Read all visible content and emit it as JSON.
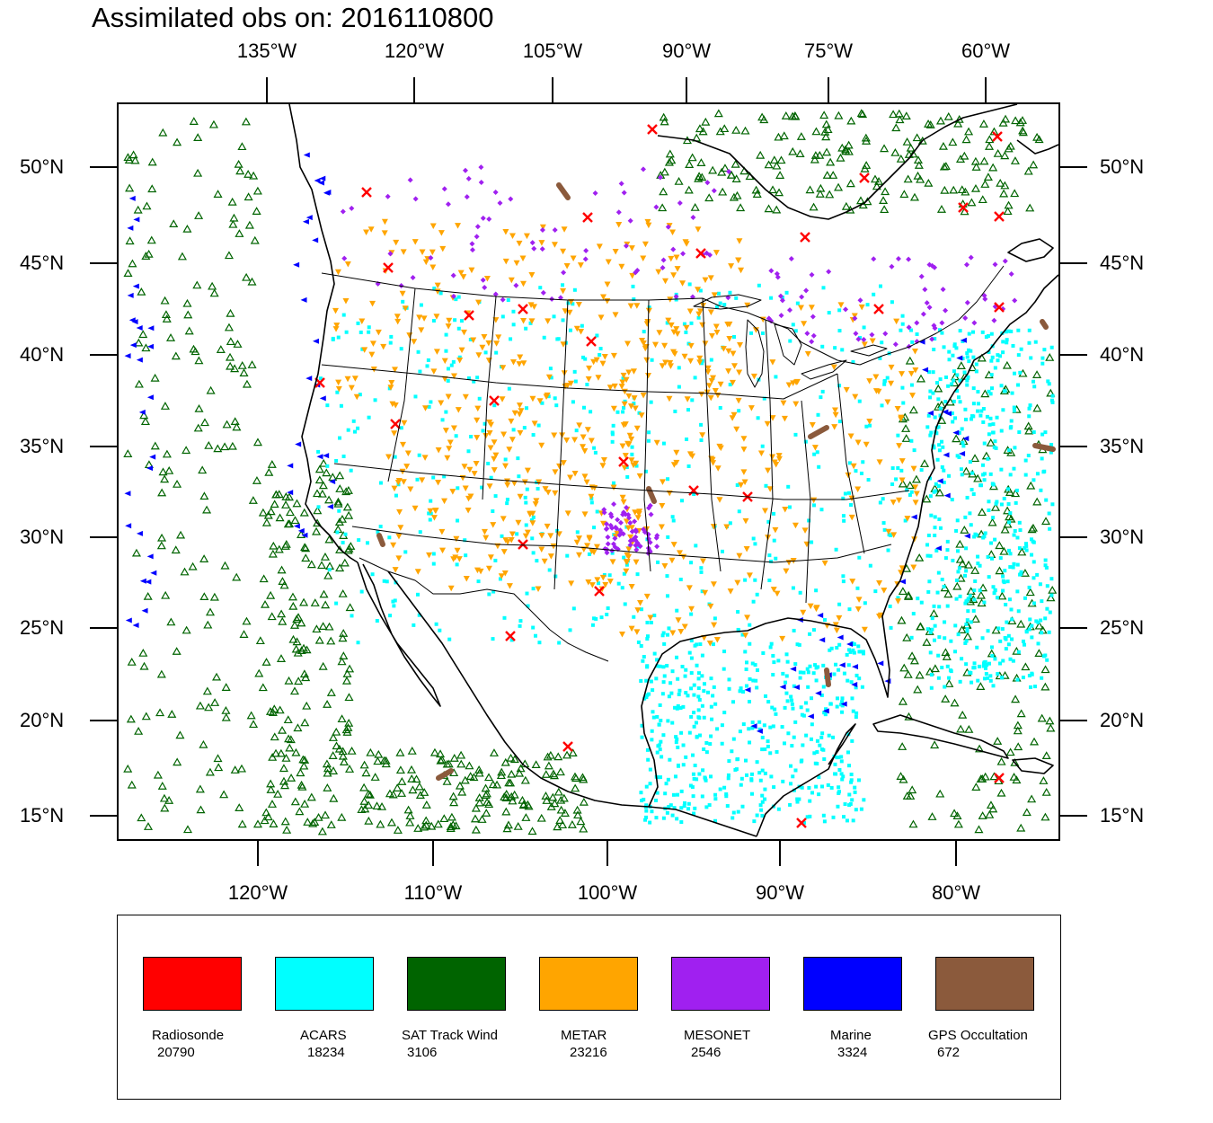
{
  "title": "Assimilated obs on: 2016110800",
  "axes": {
    "top_longitudes": [
      "135°W",
      "120°W",
      "105°W",
      "90°W",
      "75°W",
      "60°W"
    ],
    "bottom_longitudes": [
      "120°W",
      "110°W",
      "100°W",
      "90°W",
      "80°W"
    ],
    "left_latitudes": [
      "50°N",
      "45°N",
      "40°N",
      "35°N",
      "30°N",
      "25°N",
      "20°N",
      "15°N"
    ],
    "right_latitudes": [
      "50°N",
      "45°N",
      "40°N",
      "35°N",
      "30°N",
      "25°N",
      "20°N",
      "15°N"
    ]
  },
  "map": {
    "projection": "lambert-conformal",
    "region": "North America (CONUS and surrounding oceans)",
    "background_color": "#ffffff",
    "coastline_color": "#000000"
  },
  "legend": {
    "items": [
      {
        "name": "Radiosonde",
        "count": "20790",
        "color": "#ff0000",
        "marker": "x-cross"
      },
      {
        "name": "ACARS",
        "count": "18234",
        "color": "#00ffff",
        "marker": "square-dot"
      },
      {
        "name": "SAT Track Wind",
        "count": "3106",
        "color": "#006400",
        "marker": "triangle-up-outline"
      },
      {
        "name": "METAR",
        "count": "23216",
        "color": "#ffa500",
        "marker": "triangle-down"
      },
      {
        "name": "MESONET",
        "count": "2546",
        "color": "#a020f0",
        "marker": "diamond"
      },
      {
        "name": "Marine",
        "count": "3324",
        "color": "#0000ff",
        "marker": "triangle-left"
      },
      {
        "name": "GPS Occultation",
        "count": "672",
        "color": "#8b5a3c",
        "marker": "streak"
      }
    ]
  }
}
